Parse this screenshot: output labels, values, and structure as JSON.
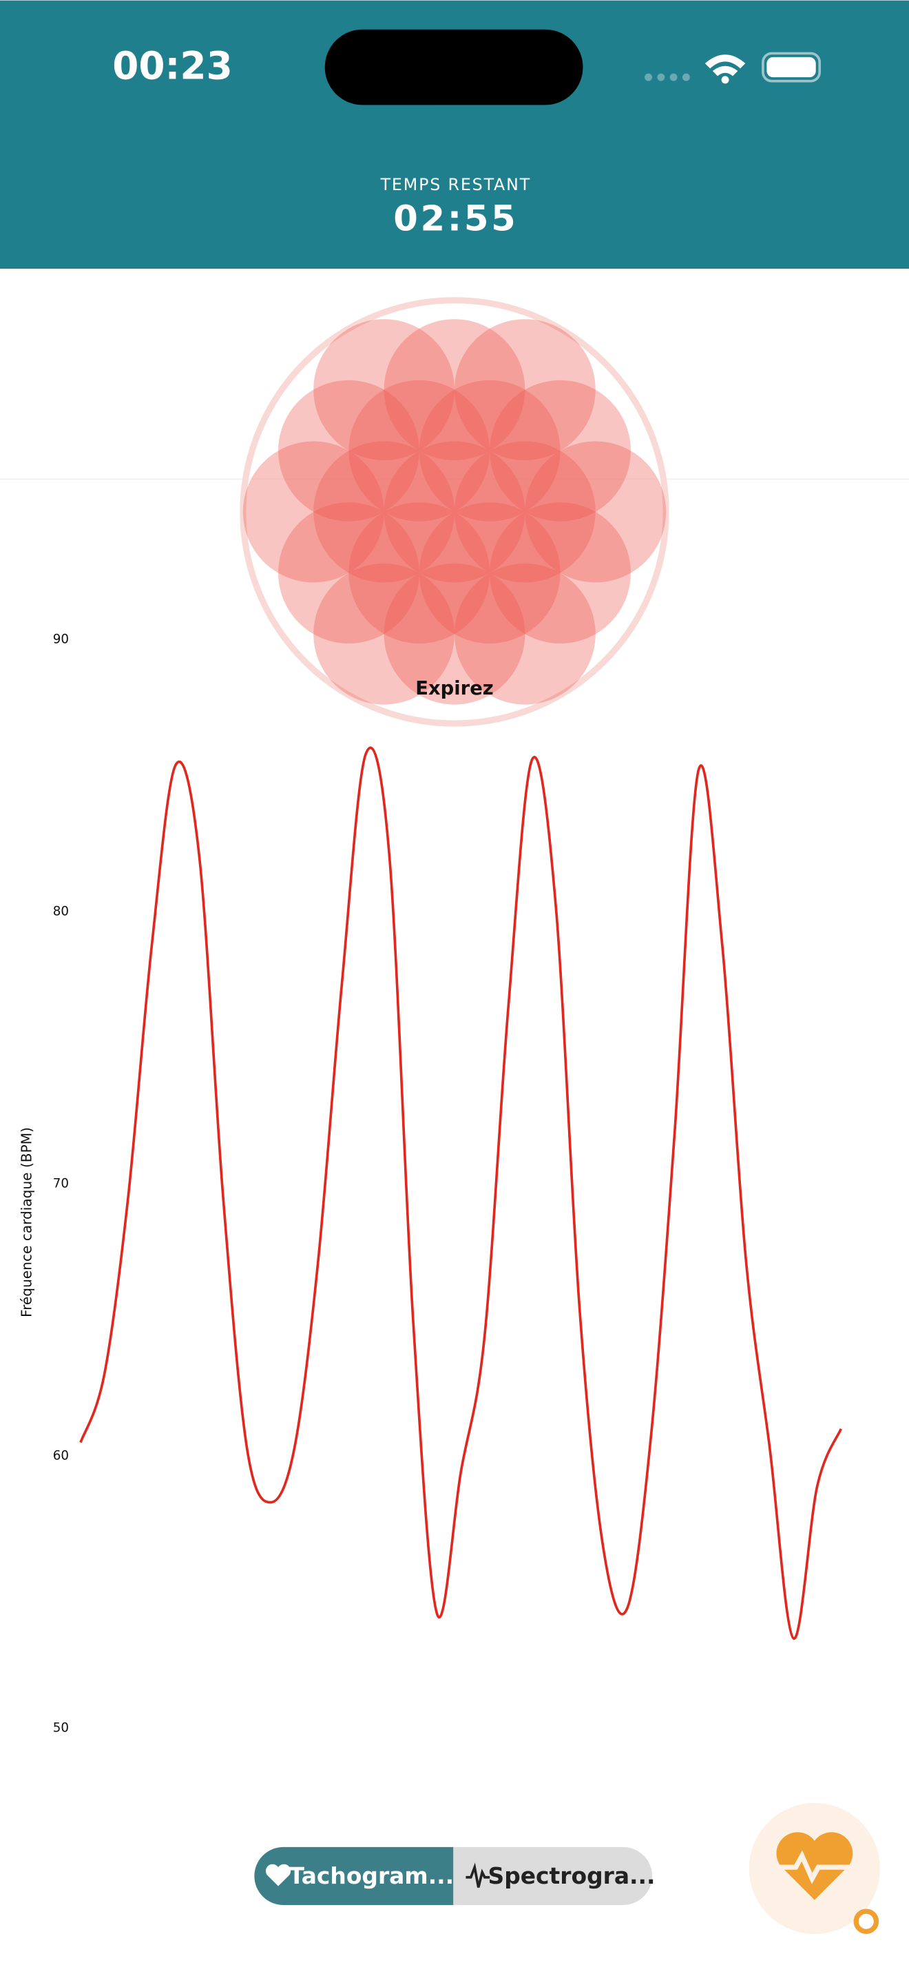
{
  "status_bar": {
    "time": "00:23"
  },
  "header": {
    "label": "TEMPS RESTANT",
    "remaining": "02:55"
  },
  "breathing": {
    "instruction": "Expirez"
  },
  "chart_data": {
    "type": "line",
    "y_label": "Fréquence cardiaque (BPM)",
    "categories": [
      null,
      null,
      null,
      null,
      null,
      null,
      null,
      null,
      null,
      null,
      null,
      null,
      null,
      null,
      null,
      null,
      null,
      null,
      null,
      null,
      null,
      null,
      null,
      null,
      null,
      null,
      null,
      null,
      null,
      null,
      null,
      null,
      null
    ],
    "series": [
      {
        "color": "#e0281e",
        "values": [
          60.5,
          63,
          69.5,
          78.8,
          85.4,
          82,
          69.5,
          60.3,
          58.3,
          60.3,
          67.2,
          77.4,
          85.8,
          82,
          64.9,
          54.2,
          59.4,
          64.4,
          76.5,
          85.6,
          80.2,
          65.4,
          56.6,
          54.4,
          60.7,
          71.9,
          85.2,
          78.8,
          67.2,
          60.3,
          53.3,
          58.9,
          61
        ]
      }
    ],
    "ylim": [
      46,
      96
    ],
    "yticks": [
      50,
      60,
      70,
      80,
      90
    ],
    "grid": false
  },
  "tabs": [
    {
      "label": "Tachogram..."
    },
    {
      "label": "Spectrogra..."
    }
  ]
}
